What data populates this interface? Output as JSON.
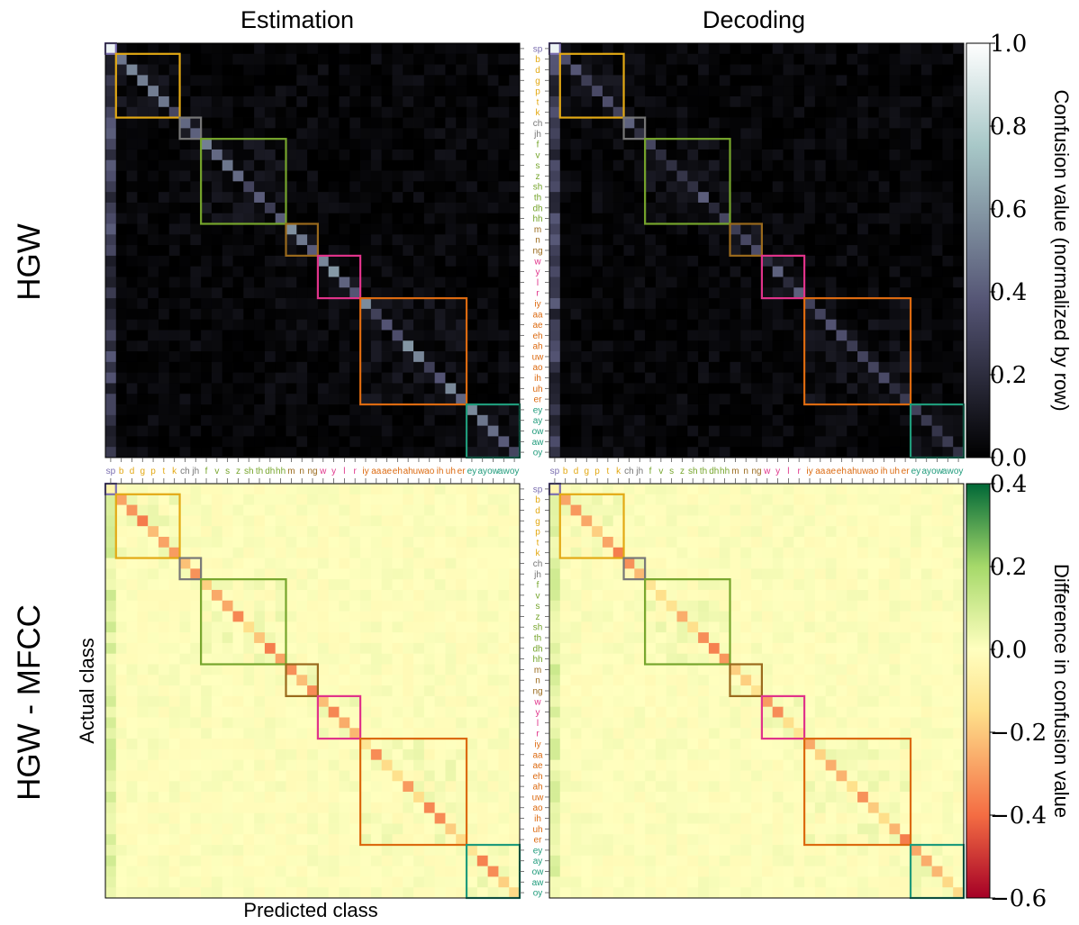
{
  "figure": {
    "col_titles": [
      "Estimation",
      "Decoding"
    ],
    "row_titles": [
      "HGW",
      "HGW - MFCC"
    ],
    "xlabel": "Predicted class",
    "ylabel": "Actual class"
  },
  "colors": {
    "background": "#ffffff",
    "groups": {
      "silence": "#7b6fb0",
      "stops": "#e3a914",
      "affricates": "#777777",
      "fricatives": "#76a52c",
      "nasals": "#9a6a1c",
      "semivowels": "#e0338a",
      "vowels": "#dc6a10",
      "diphthongs": "#1f9b7b"
    }
  },
  "chart_data": [
    {
      "type": "heatmap",
      "panel": "top-left",
      "title": "Estimation",
      "row_title": "HGW",
      "cmap": "bone",
      "diag_scale": "high",
      "colorbar": {
        "label": "Confusion value (normalized by row)",
        "ticks": [
          "1.0",
          "0.8",
          "0.6",
          "0.4",
          "0.2",
          "0.0"
        ],
        "range": [
          0.0,
          1.0
        ]
      }
    },
    {
      "type": "heatmap",
      "panel": "top-right",
      "title": "Decoding",
      "row_title": "HGW",
      "cmap": "bone",
      "diag_scale": "low"
    },
    {
      "type": "heatmap",
      "panel": "bottom-left",
      "title": "Estimation",
      "row_title": "HGW - MFCC",
      "cmap": "RdYlGn",
      "colorbar": {
        "label": "Difference in confusion value",
        "ticks": [
          "0.4",
          "0.2",
          "0.0",
          "−0.2",
          "−0.4",
          "−0.6"
        ],
        "range": [
          -0.6,
          0.4
        ]
      }
    },
    {
      "type": "heatmap",
      "panel": "bottom-right",
      "title": "Decoding",
      "row_title": "HGW - MFCC",
      "cmap": "RdYlGn"
    }
  ],
  "classes": [
    {
      "label": "sp",
      "group": "silence"
    },
    {
      "label": "b",
      "group": "stops"
    },
    {
      "label": "d",
      "group": "stops"
    },
    {
      "label": "g",
      "group": "stops"
    },
    {
      "label": "p",
      "group": "stops"
    },
    {
      "label": "t",
      "group": "stops"
    },
    {
      "label": "k",
      "group": "stops"
    },
    {
      "label": "ch",
      "group": "affricates"
    },
    {
      "label": "jh",
      "group": "affricates"
    },
    {
      "label": "f",
      "group": "fricatives"
    },
    {
      "label": "v",
      "group": "fricatives"
    },
    {
      "label": "s",
      "group": "fricatives"
    },
    {
      "label": "z",
      "group": "fricatives"
    },
    {
      "label": "sh",
      "group": "fricatives"
    },
    {
      "label": "th",
      "group": "fricatives"
    },
    {
      "label": "dh",
      "group": "fricatives"
    },
    {
      "label": "hh",
      "group": "fricatives"
    },
    {
      "label": "m",
      "group": "nasals"
    },
    {
      "label": "n",
      "group": "nasals"
    },
    {
      "label": "ng",
      "group": "nasals"
    },
    {
      "label": "w",
      "group": "semivowels"
    },
    {
      "label": "y",
      "group": "semivowels"
    },
    {
      "label": "l",
      "group": "semivowels"
    },
    {
      "label": "r",
      "group": "semivowels"
    },
    {
      "label": "iy",
      "group": "vowels"
    },
    {
      "label": "aa",
      "group": "vowels"
    },
    {
      "label": "ae",
      "group": "vowels"
    },
    {
      "label": "eh",
      "group": "vowels"
    },
    {
      "label": "ah",
      "group": "vowels"
    },
    {
      "label": "uw",
      "group": "vowels"
    },
    {
      "label": "ao",
      "group": "vowels"
    },
    {
      "label": "ih",
      "group": "vowels"
    },
    {
      "label": "uh",
      "group": "vowels"
    },
    {
      "label": "er",
      "group": "vowels"
    },
    {
      "label": "ey",
      "group": "diphthongs"
    },
    {
      "label": "ay",
      "group": "diphthongs"
    },
    {
      "label": "ow",
      "group": "diphthongs"
    },
    {
      "label": "aw",
      "group": "diphthongs"
    },
    {
      "label": "oy",
      "group": "diphthongs"
    }
  ],
  "group_boxes": [
    {
      "group": "silence",
      "start": 0,
      "end": 0
    },
    {
      "group": "stops",
      "start": 1,
      "end": 6
    },
    {
      "group": "affricates",
      "start": 7,
      "end": 8
    },
    {
      "group": "fricatives",
      "start": 9,
      "end": 16
    },
    {
      "group": "nasals",
      "start": 17,
      "end": 19
    },
    {
      "group": "semivowels",
      "start": 20,
      "end": 23
    },
    {
      "group": "vowels",
      "start": 24,
      "end": 33
    },
    {
      "group": "diphthongs",
      "start": 34,
      "end": 38
    }
  ]
}
